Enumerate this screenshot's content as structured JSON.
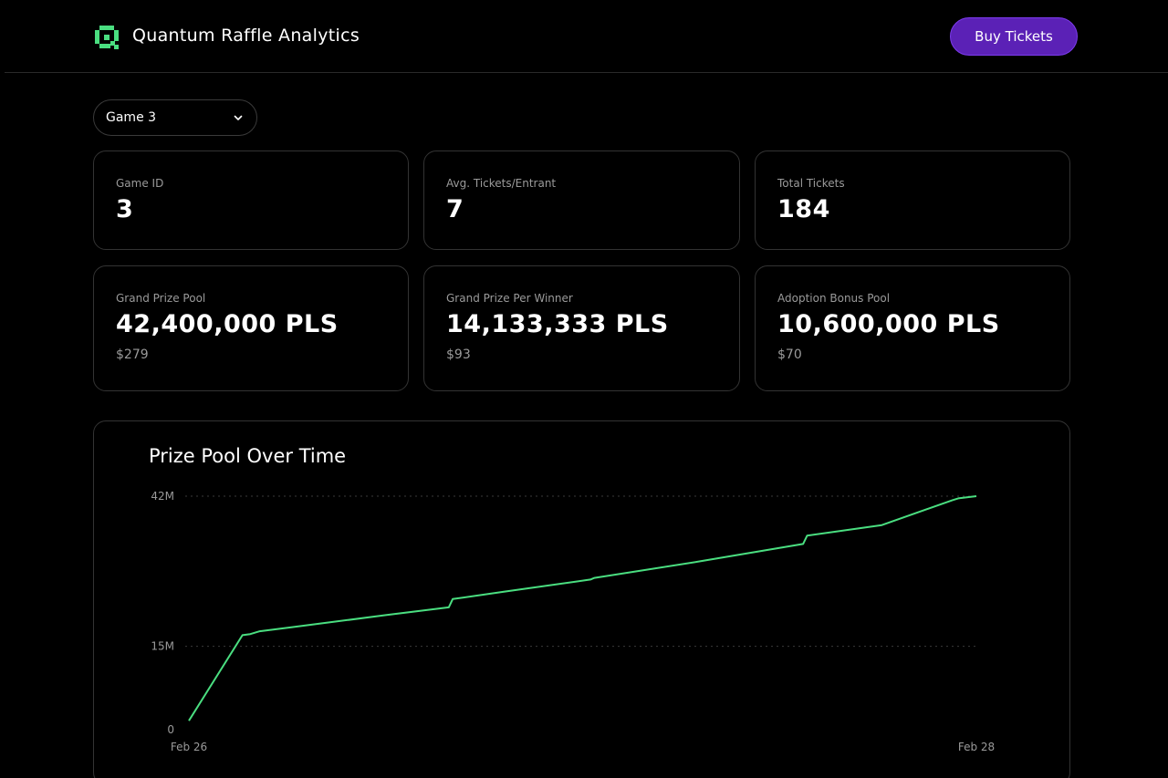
{
  "header": {
    "app_title": "Quantum Raffle Analytics",
    "buy_label": "Buy Tickets",
    "brand_color": "#4ade80",
    "button_color": "#5b21b6"
  },
  "selector": {
    "value": "Game 3"
  },
  "stats": {
    "game_id": {
      "label": "Game ID",
      "value": "3"
    },
    "avg_tickets": {
      "label": "Avg. Tickets/Entrant",
      "value": "7"
    },
    "total_tickets": {
      "label": "Total Tickets",
      "value": "184"
    },
    "grand_prize_pool": {
      "label": "Grand Prize Pool",
      "value": "42,400,000 PLS",
      "usd": "$279"
    },
    "grand_prize_per_winner": {
      "label": "Grand Prize Per Winner",
      "value": "14,133,333 PLS",
      "usd": "$93"
    },
    "adoption_bonus_pool": {
      "label": "Adoption Bonus Pool",
      "value": "10,600,000 PLS",
      "usd": "$70"
    }
  },
  "chart_data": {
    "type": "line",
    "title": "Prize Pool Over Time",
    "line_color": "#4ade80",
    "y_ticks": [
      {
        "label": "0",
        "value": 0
      },
      {
        "label": "15M",
        "value": 15
      },
      {
        "label": "42M",
        "value": 42
      }
    ],
    "x_ticks": [
      {
        "label": "Feb 26",
        "value": 0
      },
      {
        "label": "Feb 28",
        "value": 1
      }
    ],
    "ylim": [
      0,
      42
    ],
    "grid": "dotted horizontal at ticks",
    "series": [
      {
        "points": [
          [
            0.0,
            1.6
          ],
          [
            0.068,
            17.0
          ],
          [
            0.078,
            17.2
          ],
          [
            0.09,
            17.7
          ],
          [
            0.13,
            18.4
          ],
          [
            0.25,
            20.6
          ],
          [
            0.33,
            22.0
          ],
          [
            0.335,
            23.5
          ],
          [
            0.4,
            24.8
          ],
          [
            0.51,
            27.0
          ],
          [
            0.515,
            27.3
          ],
          [
            0.65,
            30.3
          ],
          [
            0.78,
            33.4
          ],
          [
            0.785,
            34.9
          ],
          [
            0.88,
            36.8
          ],
          [
            0.97,
            41.3
          ],
          [
            0.977,
            41.6
          ],
          [
            1.0,
            42.0
          ]
        ]
      }
    ]
  }
}
